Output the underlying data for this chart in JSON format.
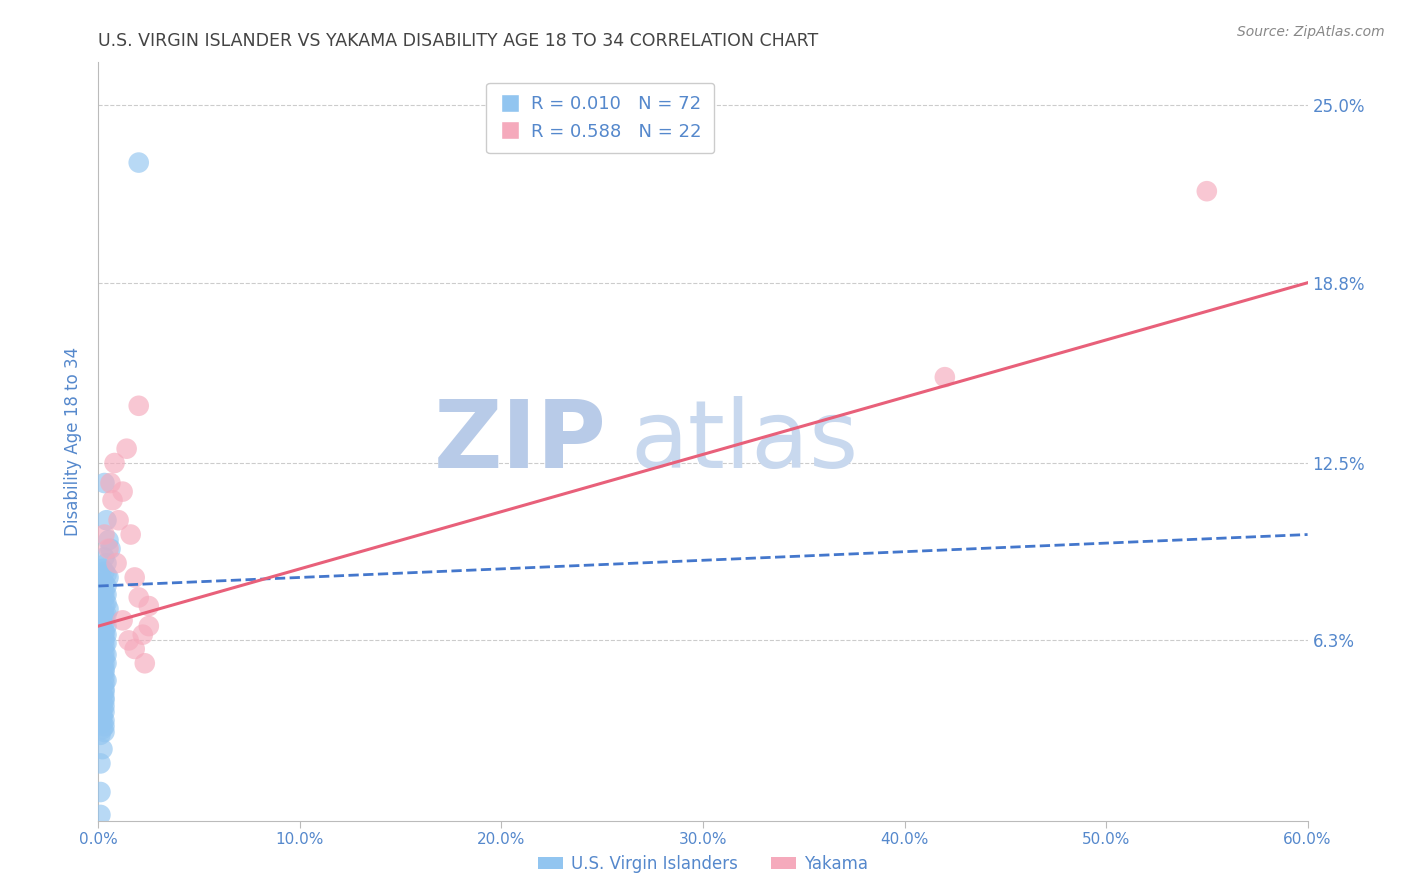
{
  "title": "U.S. VIRGIN ISLANDER VS YAKAMA DISABILITY AGE 18 TO 34 CORRELATION CHART",
  "source": "Source: ZipAtlas.com",
  "ylabel": "Disability Age 18 to 34",
  "ytick_labels": [
    "6.3%",
    "12.5%",
    "18.8%",
    "25.0%"
  ],
  "ytick_vals": [
    0.063,
    0.125,
    0.188,
    0.25
  ],
  "xtick_labels": [
    "0.0%",
    "10.0%",
    "20.0%",
    "30.0%",
    "40.0%",
    "50.0%",
    "60.0%"
  ],
  "xtick_vals": [
    0.0,
    0.1,
    0.2,
    0.3,
    0.4,
    0.5,
    0.6
  ],
  "xlim": [
    0.0,
    0.6
  ],
  "ylim": [
    0.0,
    0.265
  ],
  "watermark_line1": "ZIP",
  "watermark_line2": "atlas",
  "legend_blue_r": "R = 0.010",
  "legend_blue_n": "N = 72",
  "legend_pink_r": "R = 0.588",
  "legend_pink_n": "N = 22",
  "blue_scatter_x": [
    0.02,
    0.003,
    0.004,
    0.005,
    0.006,
    0.003,
    0.004,
    0.002,
    0.003,
    0.004,
    0.005,
    0.003,
    0.004,
    0.003,
    0.002,
    0.004,
    0.003,
    0.002,
    0.004,
    0.003,
    0.005,
    0.002,
    0.003,
    0.004,
    0.003,
    0.002,
    0.003,
    0.004,
    0.002,
    0.003,
    0.004,
    0.003,
    0.002,
    0.003,
    0.004,
    0.003,
    0.002,
    0.003,
    0.004,
    0.003,
    0.002,
    0.003,
    0.004,
    0.002,
    0.003,
    0.003,
    0.002,
    0.003,
    0.004,
    0.003,
    0.002,
    0.003,
    0.003,
    0.002,
    0.003,
    0.003,
    0.002,
    0.003,
    0.002,
    0.003,
    0.002,
    0.002,
    0.003,
    0.002,
    0.003,
    0.002,
    0.003,
    0.001,
    0.002,
    0.001,
    0.001,
    0.001
  ],
  "blue_scatter_y": [
    0.23,
    0.118,
    0.105,
    0.098,
    0.095,
    0.092,
    0.09,
    0.088,
    0.087,
    0.086,
    0.085,
    0.083,
    0.082,
    0.08,
    0.08,
    0.079,
    0.078,
    0.077,
    0.076,
    0.075,
    0.074,
    0.073,
    0.072,
    0.072,
    0.071,
    0.07,
    0.069,
    0.068,
    0.067,
    0.066,
    0.065,
    0.065,
    0.064,
    0.063,
    0.062,
    0.061,
    0.06,
    0.059,
    0.058,
    0.057,
    0.056,
    0.055,
    0.055,
    0.054,
    0.053,
    0.052,
    0.051,
    0.05,
    0.049,
    0.048,
    0.047,
    0.046,
    0.045,
    0.044,
    0.043,
    0.042,
    0.041,
    0.04,
    0.039,
    0.038,
    0.037,
    0.036,
    0.035,
    0.034,
    0.033,
    0.032,
    0.031,
    0.03,
    0.025,
    0.02,
    0.01,
    0.002
  ],
  "pink_scatter_x": [
    0.003,
    0.005,
    0.006,
    0.007,
    0.008,
    0.009,
    0.01,
    0.012,
    0.014,
    0.016,
    0.018,
    0.02,
    0.02,
    0.022,
    0.023,
    0.025,
    0.025,
    0.018,
    0.015,
    0.012,
    0.42,
    0.55
  ],
  "pink_scatter_y": [
    0.1,
    0.095,
    0.118,
    0.112,
    0.125,
    0.09,
    0.105,
    0.115,
    0.13,
    0.1,
    0.085,
    0.145,
    0.078,
    0.065,
    0.055,
    0.068,
    0.075,
    0.06,
    0.063,
    0.07,
    0.155,
    0.22
  ],
  "blue_trendline_x": [
    0.0,
    0.6
  ],
  "blue_trendline_y": [
    0.082,
    0.1
  ],
  "pink_trendline_x": [
    0.0,
    0.6
  ],
  "pink_trendline_y": [
    0.068,
    0.188
  ],
  "blue_color": "#92C5F0",
  "pink_color": "#F5AABC",
  "blue_line_color": "#4477CC",
  "pink_line_color": "#E8607A",
  "title_color": "#444444",
  "axis_label_color": "#5588CC",
  "tick_color": "#5588CC",
  "grid_color": "#CCCCCC",
  "watermark_color_zip": "#B8CBE8",
  "watermark_color_atlas": "#C8D8EE",
  "source_color": "#888888",
  "background_color": "#FFFFFF",
  "legend_box_color": "#DDDDDD"
}
